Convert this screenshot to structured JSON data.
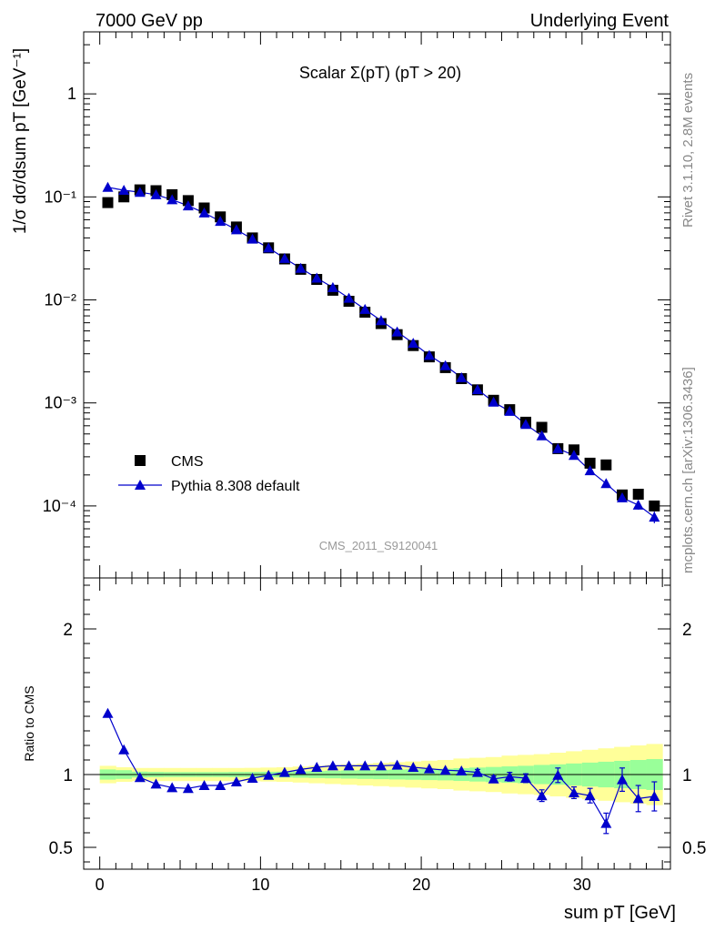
{
  "header": {
    "left": "7000 GeV pp",
    "right": "Underlying Event"
  },
  "side_labels": {
    "rivet": "Rivet 3.1.10,  2.8M events",
    "mcplots": "mcplots.cern.ch [arXiv:1306.3436]"
  },
  "chart_data": [
    {
      "type": "scatter",
      "panel": "main",
      "title": "Scalar Σ(pT) (pT > 20)",
      "watermark": "CMS_2011_S9120041",
      "ylabel": "1/σ dσ/dsum pT [GeV⁻¹]",
      "yscale": "log",
      "ylim": [
        2e-05,
        4
      ],
      "xlim": [
        -1,
        35.5
      ],
      "y_tick_labels": [
        "10⁻⁴",
        "10⁻³",
        "10⁻²",
        "10⁻¹",
        "1"
      ],
      "legend": {
        "placement": "lower-left",
        "entries": [
          "CMS",
          "Pythia 8.308 default"
        ]
      },
      "x": [
        0.5,
        1.5,
        2.5,
        3.5,
        4.5,
        5.5,
        6.5,
        7.5,
        8.5,
        9.5,
        10.5,
        11.5,
        12.5,
        13.5,
        14.5,
        15.5,
        16.5,
        17.5,
        18.5,
        19.5,
        20.5,
        21.5,
        22.5,
        23.5,
        24.5,
        25.5,
        26.5,
        27.5,
        28.5,
        29.5,
        30.5,
        31.5,
        32.5,
        33.5,
        34.5
      ],
      "series": [
        {
          "name": "CMS",
          "marker": "square",
          "color": "#000000",
          "values": [
            0.088,
            0.1,
            0.117,
            0.115,
            0.105,
            0.092,
            0.078,
            0.064,
            0.051,
            0.04,
            0.032,
            0.025,
            0.0198,
            0.0158,
            0.0124,
            0.0097,
            0.0076,
            0.0059,
            0.0046,
            0.0036,
            0.0028,
            0.0022,
            0.00172,
            0.00134,
            0.00106,
            0.00086,
            0.00065,
            0.00058,
            0.00036,
            0.00035,
            0.00026,
            0.00025,
            0.000128,
            0.00013,
            0.0001
          ]
        },
        {
          "name": "Pythia 8.308 default",
          "marker": "triangle",
          "color": "#0000cc",
          "values": [
            0.124,
            0.116,
            0.111,
            0.105,
            0.094,
            0.082,
            0.07,
            0.058,
            0.048,
            0.039,
            0.032,
            0.0253,
            0.0203,
            0.0163,
            0.0132,
            0.0104,
            0.0081,
            0.0063,
            0.0049,
            0.0038,
            0.0029,
            0.0023,
            0.00176,
            0.00135,
            0.00102,
            0.00083,
            0.00062,
            0.00048,
            0.00036,
            0.00031,
            0.00022,
            0.000165,
            0.00012,
            0.000102,
            7.8e-05
          ],
          "errors": [
            0,
            0,
            0,
            0,
            0,
            0,
            0,
            0,
            0,
            0,
            0,
            0,
            0,
            0,
            0,
            0,
            0,
            0,
            0,
            0,
            0,
            0,
            0,
            0,
            0,
            0,
            0,
            0,
            0,
            0,
            0,
            0,
            0,
            1e-05,
            1e-05
          ]
        }
      ]
    },
    {
      "type": "line",
      "panel": "ratio",
      "ylabel": "Ratio to CMS",
      "xlabel": "sum pT [GeV]",
      "ylim": [
        0.35,
        2.35
      ],
      "xlim": [
        -1,
        35.5
      ],
      "x_ticks": [
        0,
        10,
        20,
        30
      ],
      "y_ticks": [
        0.5,
        1,
        2
      ],
      "reference_line": 1,
      "x": [
        0.5,
        1.5,
        2.5,
        3.5,
        4.5,
        5.5,
        6.5,
        7.5,
        8.5,
        9.5,
        10.5,
        11.5,
        12.5,
        13.5,
        14.5,
        15.5,
        16.5,
        17.5,
        18.5,
        19.5,
        20.5,
        21.5,
        22.5,
        23.5,
        24.5,
        25.5,
        26.5,
        27.5,
        28.5,
        29.5,
        30.5,
        31.5,
        32.5,
        33.5,
        34.5
      ],
      "series": [
        {
          "name": "Pythia 8.308 default",
          "color": "#0000cc",
          "values": [
            1.42,
            1.17,
            0.98,
            0.935,
            0.91,
            0.905,
            0.925,
            0.925,
            0.95,
            0.975,
            0.995,
            1.015,
            1.035,
            1.05,
            1.06,
            1.06,
            1.06,
            1.06,
            1.065,
            1.05,
            1.04,
            1.03,
            1.025,
            1.015,
            0.97,
            0.985,
            0.975,
            0.855,
            0.995,
            0.875,
            0.855,
            0.665,
            0.965,
            0.835,
            0.85
          ],
          "errors": [
            0,
            0,
            0,
            0,
            0,
            0,
            0,
            0,
            0,
            0,
            0,
            0,
            0,
            0,
            0,
            0,
            0,
            0,
            0,
            0,
            0,
            0,
            0,
            0.02,
            0.02,
            0.03,
            0.03,
            0.04,
            0.05,
            0.04,
            0.05,
            0.07,
            0.08,
            0.09,
            0.1
          ]
        }
      ],
      "bands": {
        "x_edges": [
          0,
          1,
          2,
          3,
          4,
          5,
          6,
          7,
          8,
          9,
          10,
          11,
          12,
          13,
          14,
          15,
          16,
          17,
          18,
          19,
          20,
          21,
          22,
          23,
          24,
          25,
          26,
          27,
          28,
          29,
          30,
          31,
          32,
          33,
          34,
          35
        ],
        "green_halfwidth": [
          0.035,
          0.03,
          0.02,
          0.018,
          0.017,
          0.017,
          0.017,
          0.017,
          0.018,
          0.018,
          0.019,
          0.02,
          0.022,
          0.024,
          0.026,
          0.028,
          0.03,
          0.032,
          0.034,
          0.036,
          0.038,
          0.04,
          0.044,
          0.048,
          0.052,
          0.056,
          0.06,
          0.066,
          0.07,
          0.076,
          0.082,
          0.088,
          0.094,
          0.1,
          0.106
        ],
        "yellow_halfwidth": [
          0.06,
          0.05,
          0.045,
          0.045,
          0.045,
          0.045,
          0.045,
          0.045,
          0.045,
          0.046,
          0.048,
          0.05,
          0.055,
          0.06,
          0.065,
          0.07,
          0.075,
          0.08,
          0.085,
          0.09,
          0.095,
          0.1,
          0.11,
          0.115,
          0.12,
          0.13,
          0.135,
          0.14,
          0.15,
          0.16,
          0.17,
          0.18,
          0.19,
          0.2,
          0.21
        ],
        "green_color": "#99ff99",
        "yellow_color": "#ffff99"
      }
    }
  ]
}
